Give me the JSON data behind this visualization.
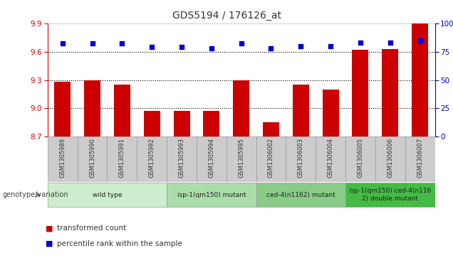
{
  "title": "GDS5194 / 176126_at",
  "samples": [
    "GSM1305989",
    "GSM1305990",
    "GSM1305991",
    "GSM1305992",
    "GSM1305993",
    "GSM1305994",
    "GSM1305995",
    "GSM1306002",
    "GSM1306003",
    "GSM1306004",
    "GSM1306005",
    "GSM1306006",
    "GSM1306007"
  ],
  "transformed_count": [
    9.28,
    9.3,
    9.25,
    8.97,
    8.97,
    8.97,
    9.3,
    8.85,
    9.25,
    9.2,
    9.62,
    9.63,
    9.9
  ],
  "percentile_rank": [
    82,
    82,
    82,
    79,
    79,
    78,
    82,
    78,
    80,
    80,
    83,
    83,
    85
  ],
  "ylim_left": [
    8.7,
    9.9
  ],
  "ylim_right": [
    0,
    100
  ],
  "yticks_left": [
    8.7,
    9.0,
    9.3,
    9.6,
    9.9
  ],
  "yticks_right": [
    0,
    25,
    50,
    75,
    100
  ],
  "dotted_lines": [
    9.0,
    9.3,
    9.6
  ],
  "bar_color": "#cc0000",
  "dot_color": "#0000cc",
  "left_axis_color": "#cc0000",
  "right_axis_color": "#0000cc",
  "group_defs": [
    {
      "start": 0,
      "end": 3,
      "label": "wild type",
      "color": "#cceecc"
    },
    {
      "start": 4,
      "end": 6,
      "label": "isp-1(qm150) mutant",
      "color": "#aaddaa"
    },
    {
      "start": 7,
      "end": 9,
      "label": "ced-4(n1162) mutant",
      "color": "#88cc88"
    },
    {
      "start": 10,
      "end": 12,
      "label": "isp-1(qm150) ced-4(n116\n2) double mutant",
      "color": "#44bb44"
    }
  ],
  "tick_bg_color": "#cccccc",
  "tick_border_color": "#999999"
}
